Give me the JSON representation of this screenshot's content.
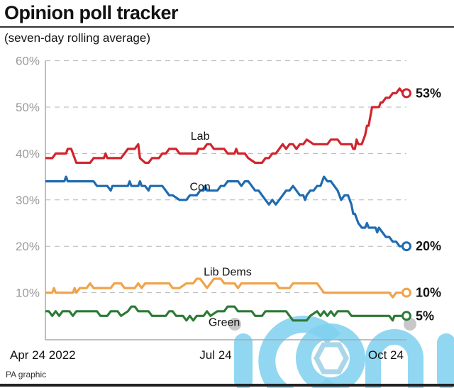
{
  "header": {
    "title": "Opinion poll tracker",
    "subtitle": "(seven-day rolling average)"
  },
  "footer": {
    "credit": "PA graphic"
  },
  "watermark": {
    "text": "iconic",
    "color": "#7fd0ef"
  },
  "chart_data": {
    "type": "line",
    "title": "Opinion poll tracker",
    "subtitle": "(seven-day rolling average)",
    "xlabel": "",
    "ylabel": "",
    "ylim": [
      0,
      60
    ],
    "yticks": [
      10,
      20,
      30,
      40,
      50,
      60
    ],
    "ytick_labels": [
      "10%",
      "20%",
      "30%",
      "40%",
      "50%",
      "60%"
    ],
    "grid": true,
    "x_range": [
      0,
      100
    ],
    "xticks": [
      {
        "pos": 0,
        "label": "Apr 24 2022"
      },
      {
        "pos": 49.5,
        "label": "Jul 24"
      },
      {
        "pos": 99,
        "label": "Oct 24"
      }
    ],
    "series": [
      {
        "name": "Lab",
        "color": "#d1242d",
        "end_label": "53%",
        "end_value": 53,
        "label_at": [
          45,
          43
        ],
        "points": [
          [
            0,
            39
          ],
          [
            2,
            39
          ],
          [
            3,
            40
          ],
          [
            6,
            40
          ],
          [
            6.5,
            41
          ],
          [
            7.5,
            41
          ],
          [
            8,
            40
          ],
          [
            9,
            38
          ],
          [
            12,
            38
          ],
          [
            13,
            38
          ],
          [
            14,
            39
          ],
          [
            16,
            39
          ],
          [
            17,
            39
          ],
          [
            17.5,
            40
          ],
          [
            18,
            39
          ],
          [
            22,
            39
          ],
          [
            23,
            40
          ],
          [
            24,
            41
          ],
          [
            26,
            41
          ],
          [
            27,
            42
          ],
          [
            27.5,
            39
          ],
          [
            29,
            38
          ],
          [
            30,
            38
          ],
          [
            31,
            39
          ],
          [
            33,
            39
          ],
          [
            34,
            40
          ],
          [
            35,
            40
          ],
          [
            36,
            41
          ],
          [
            38,
            41
          ],
          [
            39,
            40
          ],
          [
            43,
            40
          ],
          [
            44,
            40
          ],
          [
            44.5,
            41
          ],
          [
            46,
            41
          ],
          [
            47,
            42
          ],
          [
            48,
            42
          ],
          [
            49,
            41
          ],
          [
            51,
            41
          ],
          [
            52,
            41
          ],
          [
            53,
            40
          ],
          [
            55,
            40
          ],
          [
            55.5,
            41
          ],
          [
            56,
            40
          ],
          [
            58,
            40
          ],
          [
            59,
            39
          ],
          [
            61,
            38
          ],
          [
            63,
            38
          ],
          [
            64,
            39
          ],
          [
            65,
            39
          ],
          [
            66,
            40
          ],
          [
            67,
            40
          ],
          [
            68,
            41
          ],
          [
            69,
            42
          ],
          [
            70,
            41
          ],
          [
            71,
            42
          ],
          [
            72,
            42
          ],
          [
            73,
            41
          ],
          [
            74,
            42
          ],
          [
            75,
            42
          ],
          [
            76,
            43
          ],
          [
            78,
            42
          ],
          [
            82,
            42
          ],
          [
            83,
            43
          ],
          [
            85,
            43
          ],
          [
            86,
            42
          ],
          [
            89,
            42
          ],
          [
            89.5,
            41
          ],
          [
            90,
            41
          ],
          [
            90.5,
            43
          ],
          [
            91,
            42
          ],
          [
            92,
            42
          ],
          [
            93,
            44
          ],
          [
            93.5,
            46
          ],
          [
            94,
            46
          ],
          [
            95,
            50
          ],
          [
            97,
            50
          ],
          [
            97.5,
            51
          ],
          [
            98,
            51
          ],
          [
            99,
            52
          ],
          [
            100,
            52
          ],
          [
            101,
            53
          ],
          [
            102,
            53
          ],
          [
            103,
            54
          ],
          [
            104,
            53
          ],
          [
            105,
            53
          ]
        ]
      },
      {
        "name": "Con",
        "color": "#1f6bb0",
        "end_label": "20%",
        "end_value": 20,
        "label_at": [
          45,
          32
        ],
        "points": [
          [
            0,
            34
          ],
          [
            5.5,
            34
          ],
          [
            6,
            35
          ],
          [
            6.5,
            34
          ],
          [
            14,
            34
          ],
          [
            15,
            33
          ],
          [
            18,
            33
          ],
          [
            19,
            32
          ],
          [
            19.5,
            33
          ],
          [
            24,
            33
          ],
          [
            24.5,
            34
          ],
          [
            25,
            33
          ],
          [
            27,
            33
          ],
          [
            27.5,
            34
          ],
          [
            28,
            33
          ],
          [
            29,
            33
          ],
          [
            30,
            32
          ],
          [
            30.5,
            33
          ],
          [
            32,
            33
          ],
          [
            34,
            33
          ],
          [
            35,
            32
          ],
          [
            36,
            31
          ],
          [
            37,
            31
          ],
          [
            39,
            30
          ],
          [
            41,
            30
          ],
          [
            42,
            31
          ],
          [
            44,
            31
          ],
          [
            45,
            32
          ],
          [
            46,
            32
          ],
          [
            46.5,
            33
          ],
          [
            47,
            32
          ],
          [
            50,
            32
          ],
          [
            51,
            33
          ],
          [
            52,
            33
          ],
          [
            53,
            34
          ],
          [
            56,
            34
          ],
          [
            57,
            33
          ],
          [
            58,
            34
          ],
          [
            59,
            34
          ],
          [
            60,
            33
          ],
          [
            61,
            32
          ],
          [
            62,
            32
          ],
          [
            63,
            31
          ],
          [
            64,
            30
          ],
          [
            65,
            29
          ],
          [
            66,
            30
          ],
          [
            67,
            29
          ],
          [
            68,
            30
          ],
          [
            69,
            31
          ],
          [
            70,
            32
          ],
          [
            71,
            32
          ],
          [
            72,
            33
          ],
          [
            73,
            32
          ],
          [
            74,
            31
          ],
          [
            75,
            31
          ],
          [
            75.5,
            30
          ],
          [
            76,
            31
          ],
          [
            77,
            32
          ],
          [
            78,
            32
          ],
          [
            79,
            33
          ],
          [
            80,
            33
          ],
          [
            81,
            35
          ],
          [
            82,
            34
          ],
          [
            83,
            34
          ],
          [
            84,
            33
          ],
          [
            85,
            32
          ],
          [
            86,
            30
          ],
          [
            87,
            31
          ],
          [
            88,
            31
          ],
          [
            89,
            29
          ],
          [
            89.5,
            27
          ],
          [
            90,
            27
          ],
          [
            91,
            25
          ],
          [
            92,
            24
          ],
          [
            93,
            24
          ],
          [
            93.5,
            25
          ],
          [
            94,
            24
          ],
          [
            95,
            24
          ],
          [
            96,
            24
          ],
          [
            96.5,
            23
          ],
          [
            97,
            24
          ],
          [
            98,
            23
          ],
          [
            99,
            22
          ],
          [
            100,
            22
          ],
          [
            101,
            21
          ],
          [
            102,
            21
          ],
          [
            103,
            20
          ],
          [
            104,
            20
          ],
          [
            105,
            20
          ]
        ]
      },
      {
        "name": "Lib Dems",
        "color": "#f0a34a",
        "end_label": "10%",
        "end_value": 10,
        "label_at": [
          53,
          13.7
        ],
        "points": [
          [
            0,
            10
          ],
          [
            2,
            10
          ],
          [
            2.5,
            11
          ],
          [
            3,
            10
          ],
          [
            8,
            10
          ],
          [
            8.5,
            11
          ],
          [
            9,
            10
          ],
          [
            10,
            11
          ],
          [
            12,
            11
          ],
          [
            13,
            12
          ],
          [
            14,
            11
          ],
          [
            19,
            11
          ],
          [
            20,
            12
          ],
          [
            22,
            12
          ],
          [
            23,
            11
          ],
          [
            26,
            11
          ],
          [
            27,
            12
          ],
          [
            28,
            11
          ],
          [
            29,
            12
          ],
          [
            36,
            12
          ],
          [
            37,
            11
          ],
          [
            39,
            11
          ],
          [
            41,
            12
          ],
          [
            43,
            12
          ],
          [
            44,
            13
          ],
          [
            45,
            13
          ],
          [
            46,
            12
          ],
          [
            47,
            11
          ],
          [
            48,
            12
          ],
          [
            49,
            13
          ],
          [
            51,
            13
          ],
          [
            52,
            12
          ],
          [
            55,
            12
          ],
          [
            56,
            11
          ],
          [
            57,
            12
          ],
          [
            59,
            12
          ],
          [
            67,
            12
          ],
          [
            68,
            11
          ],
          [
            71,
            11
          ],
          [
            72,
            12
          ],
          [
            79,
            12
          ],
          [
            80,
            11
          ],
          [
            81,
            10
          ],
          [
            100,
            10
          ],
          [
            101,
            9
          ],
          [
            102,
            10
          ],
          [
            105,
            10
          ]
        ]
      },
      {
        "name": "Green",
        "color": "#2c7a36",
        "end_label": "5%",
        "end_value": 5,
        "label_at": [
          52,
          2.8
        ],
        "points": [
          [
            0,
            6
          ],
          [
            1,
            6
          ],
          [
            2,
            5
          ],
          [
            3,
            6
          ],
          [
            4,
            5
          ],
          [
            5,
            6
          ],
          [
            7,
            6
          ],
          [
            8,
            5
          ],
          [
            9,
            6
          ],
          [
            15,
            6
          ],
          [
            16,
            5
          ],
          [
            18,
            5
          ],
          [
            19,
            6
          ],
          [
            21,
            6
          ],
          [
            22,
            5
          ],
          [
            24,
            6
          ],
          [
            25,
            7
          ],
          [
            26,
            7
          ],
          [
            27,
            6
          ],
          [
            30,
            6
          ],
          [
            31,
            5
          ],
          [
            35,
            5
          ],
          [
            36,
            6
          ],
          [
            37,
            6
          ],
          [
            38,
            5
          ],
          [
            40,
            5
          ],
          [
            41,
            4
          ],
          [
            42,
            5
          ],
          [
            43,
            4
          ],
          [
            44,
            5
          ],
          [
            46,
            5
          ],
          [
            47,
            6
          ],
          [
            48,
            5
          ],
          [
            50,
            6
          ],
          [
            52,
            6
          ],
          [
            53,
            7
          ],
          [
            55,
            7
          ],
          [
            56,
            6
          ],
          [
            60,
            6
          ],
          [
            61,
            5
          ],
          [
            63,
            5
          ],
          [
            64,
            6
          ],
          [
            70,
            6
          ],
          [
            71,
            5
          ],
          [
            72,
            4
          ],
          [
            76,
            4
          ],
          [
            77,
            5
          ],
          [
            79,
            6
          ],
          [
            80,
            5
          ],
          [
            81,
            6
          ],
          [
            82,
            5
          ],
          [
            83,
            6
          ],
          [
            84,
            5
          ],
          [
            85,
            6
          ],
          [
            88,
            6
          ],
          [
            89,
            5
          ],
          [
            100,
            5
          ],
          [
            101,
            4
          ],
          [
            101.5,
            5
          ],
          [
            102,
            5
          ],
          [
            103,
            5
          ],
          [
            105,
            5
          ]
        ]
      }
    ]
  }
}
